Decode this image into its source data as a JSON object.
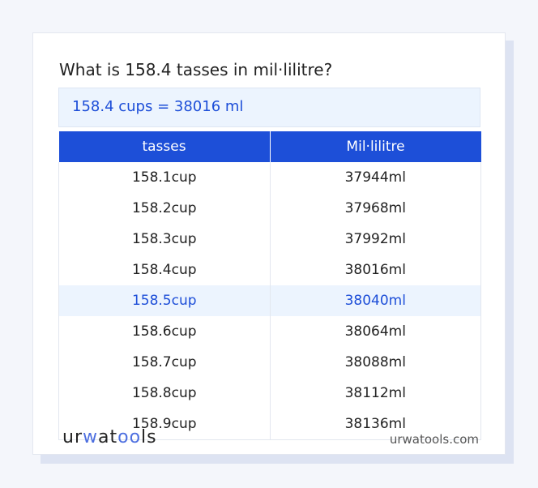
{
  "title": "What is 158.4 tasses in mil·lilitre?",
  "result": "158.4 cups = 38016 ml",
  "table": {
    "headers": [
      "tasses",
      "Mil·lilitre"
    ],
    "rows": [
      [
        "158.1cup",
        "37944ml"
      ],
      [
        "158.2cup",
        "37968ml"
      ],
      [
        "158.3cup",
        "37992ml"
      ],
      [
        "158.4cup",
        "38016ml"
      ],
      [
        "158.5cup",
        "38040ml"
      ],
      [
        "158.6cup",
        "38064ml"
      ],
      [
        "158.7cup",
        "38088ml"
      ],
      [
        "158.8cup",
        "38112ml"
      ],
      [
        "158.9cup",
        "38136ml"
      ]
    ],
    "highlighted_row": 4
  },
  "logo": "urwatools",
  "site": "urwatools.com",
  "colors": {
    "accent": "#1d4fd8",
    "highlight_bg": "#ecf4fe"
  }
}
